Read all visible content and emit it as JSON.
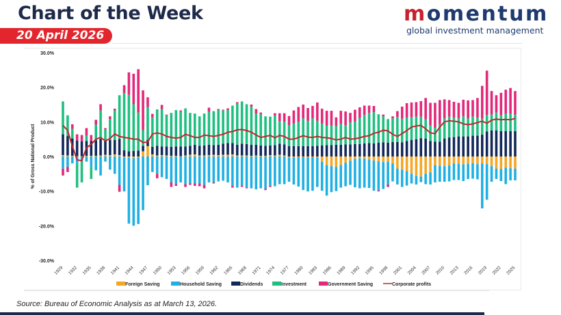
{
  "header": {
    "title": "Chart of the Week",
    "date": "20 April 2026",
    "logo_word": "momentum",
    "logo_word_accent": "m",
    "logo_word_rest": "omentum",
    "logo_subtitle": "global investment management"
  },
  "footer": {
    "source": "Source: Bureau of Economic Analysis as at March 13, 2026."
  },
  "colors": {
    "foreign": "#f5a623",
    "household": "#1fb0e3",
    "dividends": "#12285a",
    "investment": "#1fbf80",
    "government": "#e3287a",
    "profits": "#c0262d",
    "brand_red": "#e3262d",
    "brand_navy": "#1e2a4a"
  },
  "chart_data": {
    "type": "bar",
    "stacked": true,
    "title": "",
    "xlabel": "",
    "ylabel": "% of Gross National Product",
    "ylim": [
      -30,
      30
    ],
    "yticks": [
      -30,
      -20,
      -10,
      0,
      10,
      20,
      30
    ],
    "ytick_labels": [
      "-30.0%",
      "-20.0%",
      "-10.0%",
      "0.0%",
      "10.0%",
      "20.0%",
      "30.0%"
    ],
    "grid": false,
    "legend_position": "bottom",
    "start_year": 1929,
    "end_year": 2025,
    "xtick_labels": [
      "1929",
      "1932",
      "1935",
      "1938",
      "1941",
      "1944",
      "1947",
      "1950",
      "1953",
      "1956",
      "1959",
      "1962",
      "1965",
      "1968",
      "1971",
      "1974",
      "1977",
      "1980",
      "1983",
      "1986",
      "1989",
      "1992",
      "1995",
      "1998",
      "2001",
      "2004",
      "2007",
      "2010",
      "2013",
      "2016",
      "2019",
      "2022",
      "2025"
    ],
    "legend": [
      "Foreign Saving",
      "Household Saving",
      "Dividends",
      "Investment",
      "Government Saving",
      "Corporate profits"
    ],
    "series": [
      {
        "name": "Foreign Saving",
        "kind": "bar",
        "color_key": "foreign",
        "values": [
          0.4,
          0.3,
          0.2,
          0.1,
          0.1,
          0.2,
          0.2,
          0.2,
          0.3,
          0.5,
          0.4,
          0.6,
          0.4,
          -0.3,
          -0.4,
          -0.5,
          -0.3,
          1.5,
          3.0,
          0.6,
          0.3,
          0.4,
          0.3,
          0.2,
          0.2,
          0.1,
          0.3,
          0.5,
          0.6,
          0.3,
          0.3,
          0.4,
          0.5,
          0.4,
          0.5,
          0.5,
          0.6,
          0.3,
          0.3,
          0.3,
          0.2,
          0.3,
          0.2,
          0.2,
          0.4,
          0.3,
          0.5,
          0.3,
          -0.3,
          -0.3,
          -0.2,
          -0.2,
          -0.3,
          -0.2,
          -0.3,
          -1.5,
          -2.5,
          -2.8,
          -3.0,
          -2.5,
          -1.8,
          -1.2,
          -0.7,
          -0.5,
          -0.6,
          -0.9,
          -1.2,
          -1.4,
          -1.6,
          -1.5,
          -2.0,
          -3.5,
          -3.8,
          -4.2,
          -5.0,
          -5.6,
          -5.8,
          -5.0,
          -4.6,
          -2.5,
          -2.7,
          -2.8,
          -2.6,
          -2.0,
          -2.1,
          -2.3,
          -2.1,
          -1.9,
          -2.2,
          -2.0,
          -2.2,
          -2.8,
          -3.5,
          -3.6,
          -3.2,
          -3.4,
          -3.5
        ]
      },
      {
        "name": "Household Saving",
        "kind": "bar",
        "color_key": "household",
        "values": [
          -3.5,
          -3.0,
          -2.0,
          -2.0,
          -1.0,
          -1.5,
          -3.0,
          -4.0,
          -5.5,
          -1.5,
          -3.8,
          -5.0,
          -8.2,
          -9.8,
          -19.0,
          -19.5,
          -19.2,
          -15.5,
          -8.3,
          -4.5,
          -5.0,
          -6.0,
          -6.5,
          -7.5,
          -8.0,
          -7.5,
          -8.0,
          -7.8,
          -7.8,
          -7.8,
          -8.2,
          -7.5,
          -7.5,
          -7.2,
          -7.0,
          -7.5,
          -8.5,
          -9.0,
          -8.5,
          -9.0,
          -9.2,
          -9.5,
          -9.2,
          -9.3,
          -8.5,
          -8.6,
          -8.0,
          -8.0,
          -7.0,
          -7.8,
          -8.5,
          -9.5,
          -9.8,
          -9.7,
          -8.5,
          -8.4,
          -8.8,
          -7.5,
          -7.0,
          -6.5,
          -6.8,
          -7.0,
          -8.2,
          -8.7,
          -8.4,
          -8.2,
          -8.7,
          -8.4,
          -7.8,
          -6.6,
          -5.2,
          -4.6,
          -5.0,
          -4.2,
          -2.8,
          -2.5,
          -1.6,
          -3.0,
          -3.5,
          -5.0,
          -4.6,
          -4.5,
          -4.6,
          -4.8,
          -4.7,
          -4.8,
          -4.4,
          -4.5,
          -4.4,
          -13.0,
          -10.3,
          -4.5,
          -3.0,
          -3.5,
          -4.8,
          -3.5,
          -3.4
        ]
      },
      {
        "name": "Dividends",
        "kind": "bar",
        "color_key": "dividends",
        "values": [
          6.0,
          5.6,
          5.0,
          4.5,
          4.3,
          4.3,
          4.3,
          4.5,
          4.8,
          4.2,
          4.4,
          4.2,
          4.7,
          1.8,
          1.5,
          1.6,
          1.7,
          1.6,
          1.8,
          2.2,
          2.8,
          2.5,
          2.6,
          2.6,
          2.7,
          2.8,
          2.6,
          2.6,
          2.8,
          2.8,
          2.9,
          3.0,
          2.8,
          3.0,
          3.2,
          3.4,
          3.3,
          3.1,
          3.4,
          3.3,
          3.2,
          3.1,
          3.0,
          2.9,
          2.8,
          3.0,
          3.2,
          3.2,
          3.0,
          3.0,
          3.0,
          3.0,
          3.0,
          3.0,
          3.1,
          3.2,
          3.3,
          3.3,
          3.4,
          3.4,
          3.5,
          3.5,
          3.6,
          3.6,
          3.8,
          3.9,
          3.8,
          4.0,
          4.1,
          4.0,
          4.2,
          4.2,
          4.1,
          4.5,
          4.8,
          5.0,
          5.3,
          5.2,
          4.5,
          4.3,
          4.3,
          5.2,
          5.5,
          5.6,
          5.8,
          5.8,
          5.8,
          6.0,
          6.0,
          6.3,
          7.2,
          7.5,
          7.5,
          7.3,
          7.3,
          7.3,
          7.3
        ]
      },
      {
        "name": "Investment",
        "kind": "bar",
        "color_key": "investment",
        "values": [
          9.5,
          6.0,
          2.8,
          -7.0,
          -6.5,
          1.5,
          -3.5,
          4.5,
          8.2,
          3.2,
          6.0,
          8.5,
          12.6,
          16.5,
          16.3,
          13.5,
          11.0,
          4.5,
          9.5,
          8.5,
          10.5,
          10.8,
          9.0,
          9.8,
          10.5,
          10.0,
          11.0,
          9.5,
          9.0,
          8.5,
          9.2,
          9.5,
          9.8,
          10.0,
          9.6,
          9.5,
          10.8,
          12.0,
          12.2,
          11.5,
          11.0,
          9.0,
          9.0,
          8.5,
          8.3,
          8.5,
          6.5,
          6.5,
          6.0,
          6.5,
          7.0,
          8.0,
          7.3,
          8.0,
          7.2,
          6.3,
          5.6,
          5.6,
          5.4,
          6.0,
          5.5,
          6.3,
          6.5,
          7.5,
          8.2,
          8.7,
          9.0,
          8.2,
          7.5,
          6.8,
          6.8,
          7.2,
          6.8,
          6.7,
          6.5,
          6.5,
          6.2,
          5.5,
          4.5,
          4.0,
          5.0,
          5.8,
          6.0,
          5.6,
          5.2,
          5.8,
          5.2,
          5.5,
          5.2,
          4.6,
          4.8,
          4.6,
          5.2,
          4.6,
          5.0,
          5.0,
          4.8
        ]
      },
      {
        "name": "Government Saving",
        "kind": "bar",
        "color_key": "government",
        "values": [
          -2.0,
          -1.5,
          1.3,
          1.8,
          1.8,
          2.2,
          1.7,
          1.4,
          1.8,
          0.3,
          0.8,
          0.5,
          -2.0,
          2.3,
          6.5,
          8.8,
          12.5,
          11.5,
          2.8,
          1.0,
          -1.3,
          1.2,
          0.2,
          -1.3,
          -0.5,
          0.4,
          -0.8,
          -0.4,
          -0.7,
          -0.8,
          -1.0,
          1.2,
          -0.3,
          0.3,
          0.2,
          0.5,
          -0.5,
          0.3,
          -0.3,
          -0.2,
          0.6,
          1.3,
          0.5,
          -0.4,
          -0.3,
          0.7,
          2.3,
          2.5,
          2.7,
          3.8,
          4.3,
          4.0,
          3.7,
          3.6,
          5.3,
          4.3,
          4.3,
          4.3,
          2.5,
          3.8,
          4.0,
          2.8,
          3.4,
          3.1,
          2.7,
          2.1,
          1.8,
          -0.3,
          0.5,
          -0.7,
          0.6,
          1.7,
          3.5,
          4.2,
          4.3,
          4.2,
          4.5,
          6.2,
          6.5,
          7.2,
          7.0,
          5.5,
          4.8,
          4.6,
          4.5,
          4.8,
          5.2,
          4.8,
          5.7,
          9.5,
          12.8,
          6.8,
          5.0,
          6.5,
          7.0,
          7.5,
          6.8
        ]
      },
      {
        "name": "Corporate profits",
        "kind": "line",
        "color_key": "profits",
        "values": [
          9.0,
          7.5,
          3.0,
          -1.0,
          -1.2,
          2.5,
          3.5,
          5.0,
          5.5,
          4.5,
          5.2,
          6.5,
          5.8,
          5.5,
          5.3,
          5.0,
          5.0,
          4.0,
          4.2,
          6.5,
          6.8,
          6.5,
          5.8,
          5.5,
          5.3,
          5.5,
          6.4,
          6.0,
          5.5,
          5.5,
          6.2,
          6.0,
          5.8,
          6.1,
          6.4,
          7.0,
          7.2,
          7.7,
          7.8,
          7.5,
          7.0,
          6.2,
          5.5,
          5.8,
          6.1,
          5.4,
          6.1,
          5.8,
          5.0,
          5.0,
          5.5,
          6.0,
          5.6,
          5.5,
          5.8,
          5.5,
          5.4,
          5.2,
          4.8,
          5.0,
          5.5,
          5.0,
          5.1,
          5.4,
          5.8,
          6.0,
          6.7,
          7.0,
          7.6,
          7.4,
          6.4,
          5.8,
          6.6,
          7.5,
          8.5,
          8.8,
          9.0,
          8.0,
          6.8,
          6.6,
          8.5,
          10.0,
          10.3,
          10.2,
          10.0,
          9.4,
          9.2,
          9.4,
          9.8,
          10.2,
          9.6,
          10.5,
          10.8,
          10.6,
          10.7,
          10.6,
          11.0
        ]
      }
    ]
  }
}
